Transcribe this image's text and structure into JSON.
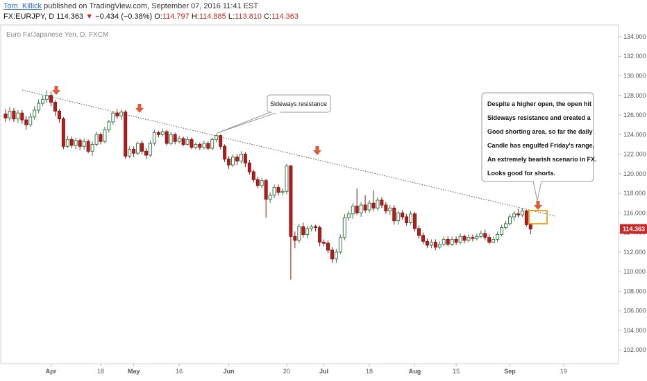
{
  "header": {
    "author": "Tom_Killick",
    "published_text": "published on TradingView.com, September 07, 2016 11:41 EST",
    "symbol": "FX:EURJPY, D",
    "last": "114.363",
    "down_arrow": "▼",
    "change": "−0.434 (−0.38%)",
    "o_label": "O:",
    "o_value": "114.797",
    "h_label": "H:",
    "h_value": "114.885",
    "l_label": "L:",
    "l_value": "113.810",
    "c_label": "C:",
    "c_value": "114.363"
  },
  "chart_data": {
    "type": "candlestick",
    "symbol_label": "Euro Fx/Japanese Yen, D, FXCM",
    "ylim": [
      100.6,
      135.2
    ],
    "y_ticks": [
      "102.000",
      "104.000",
      "106.000",
      "108.000",
      "110.000",
      "112.000",
      "114.000",
      "116.000",
      "118.000",
      "120.000",
      "122.000",
      "124.000",
      "126.000",
      "128.000",
      "130.000",
      "132.000",
      "134.000"
    ],
    "x_ticks": [
      {
        "label": "Apr",
        "bold": true,
        "i": 11
      },
      {
        "label": "18",
        "bold": false,
        "i": 23
      },
      {
        "label": "May",
        "bold": true,
        "i": 31
      },
      {
        "label": "16",
        "bold": false,
        "i": 42
      },
      {
        "label": "Jun",
        "bold": true,
        "i": 54
      },
      {
        "label": "20",
        "bold": false,
        "i": 68
      },
      {
        "label": "Jul",
        "bold": true,
        "i": 77
      },
      {
        "label": "18",
        "bold": false,
        "i": 88
      },
      {
        "label": "Aug",
        "bold": true,
        "i": 99
      },
      {
        "label": "15",
        "bold": false,
        "i": 109
      },
      {
        "label": "Sep",
        "bold": true,
        "i": 122
      },
      {
        "label": "19",
        "bold": false,
        "i": 135
      }
    ],
    "candles": [
      [
        126.1,
        125.7,
        126.6,
        125.3
      ],
      [
        125.7,
        126.4,
        126.8,
        125.4
      ],
      [
        126.4,
        125.6,
        126.7,
        125.3
      ],
      [
        125.6,
        126.2,
        126.5,
        125.2
      ],
      [
        126.2,
        125.5,
        126.5,
        125.1
      ],
      [
        125.5,
        125.0,
        125.9,
        124.5
      ],
      [
        125.0,
        125.8,
        126.2,
        124.8
      ],
      [
        125.8,
        126.5,
        126.9,
        125.5
      ],
      [
        126.5,
        127.2,
        127.6,
        126.2
      ],
      [
        127.2,
        127.6,
        128.0,
        126.9
      ],
      [
        127.6,
        128.0,
        128.5,
        127.2
      ],
      [
        128.0,
        127.3,
        128.4,
        126.9
      ],
      [
        127.3,
        126.4,
        127.5,
        125.9
      ],
      [
        126.4,
        125.6,
        126.6,
        125.2
      ],
      [
        125.6,
        122.8,
        125.8,
        122.5
      ],
      [
        122.8,
        123.5,
        123.9,
        122.6
      ],
      [
        123.5,
        122.9,
        123.8,
        122.6
      ],
      [
        122.9,
        123.4,
        123.7,
        122.5
      ],
      [
        123.4,
        122.8,
        123.6,
        122.4
      ],
      [
        122.8,
        123.3,
        123.6,
        122.5
      ],
      [
        123.3,
        122.3,
        123.5,
        122.1
      ],
      [
        122.3,
        123.0,
        123.3,
        121.8
      ],
      [
        123.0,
        124.0,
        124.3,
        122.8
      ],
      [
        124.0,
        123.3,
        124.2,
        123.0
      ],
      [
        123.3,
        124.5,
        124.8,
        123.1
      ],
      [
        124.5,
        125.3,
        125.5,
        124.2
      ],
      [
        125.3,
        126.2,
        126.4,
        125.0
      ],
      [
        126.2,
        125.9,
        126.6,
        125.6
      ],
      [
        125.9,
        126.3,
        126.6,
        125.5
      ],
      [
        126.3,
        121.8,
        126.5,
        121.5
      ],
      [
        121.8,
        122.5,
        122.8,
        121.6
      ],
      [
        122.5,
        122.1,
        122.8,
        121.7
      ],
      [
        122.1,
        123.1,
        123.3,
        121.9
      ],
      [
        123.1,
        122.3,
        123.4,
        122.0
      ],
      [
        122.3,
        121.9,
        122.6,
        121.5
      ],
      [
        121.9,
        123.1,
        123.4,
        121.7
      ],
      [
        123.1,
        124.2,
        124.5,
        122.9
      ],
      [
        124.2,
        124.0,
        124.4,
        123.7
      ],
      [
        124.0,
        124.3,
        124.6,
        123.8
      ],
      [
        124.3,
        123.1,
        124.5,
        122.9
      ],
      [
        123.1,
        124.0,
        124.3,
        122.9
      ],
      [
        124.0,
        123.3,
        124.2,
        123.0
      ],
      [
        123.3,
        123.6,
        123.9,
        123.1
      ],
      [
        123.6,
        123.0,
        123.8,
        122.8
      ],
      [
        123.0,
        123.5,
        123.8,
        122.9
      ],
      [
        123.5,
        122.7,
        123.7,
        122.5
      ],
      [
        122.7,
        123.0,
        123.2,
        122.5
      ],
      [
        123.0,
        122.7,
        123.2,
        122.4
      ],
      [
        122.7,
        123.1,
        123.4,
        122.5
      ],
      [
        123.1,
        122.6,
        123.3,
        122.4
      ],
      [
        122.6,
        123.5,
        123.7,
        122.4
      ],
      [
        123.5,
        123.9,
        124.1,
        123.2
      ],
      [
        123.9,
        122.8,
        124.0,
        122.5
      ],
      [
        122.8,
        121.5,
        123.0,
        121.2
      ],
      [
        121.5,
        120.9,
        121.8,
        120.5
      ],
      [
        120.9,
        121.7,
        122.0,
        120.7
      ],
      [
        121.7,
        121.3,
        122.0,
        120.9
      ],
      [
        121.3,
        122.0,
        122.3,
        121.0
      ],
      [
        122.0,
        121.1,
        122.2,
        120.7
      ],
      [
        121.1,
        120.2,
        121.4,
        119.9
      ],
      [
        120.2,
        119.4,
        120.4,
        119.1
      ],
      [
        119.4,
        118.8,
        119.7,
        118.5
      ],
      [
        118.8,
        119.3,
        119.6,
        118.5
      ],
      [
        119.3,
        117.4,
        119.5,
        115.5
      ],
      [
        117.4,
        117.8,
        118.1,
        117.0
      ],
      [
        117.8,
        118.6,
        118.9,
        117.5
      ],
      [
        118.6,
        118.1,
        118.9,
        117.8
      ],
      [
        118.1,
        118.2,
        118.5,
        117.8
      ],
      [
        118.2,
        120.8,
        121.0,
        117.9
      ],
      [
        120.8,
        113.6,
        120.9,
        109.2
      ],
      [
        113.6,
        113.2,
        114.1,
        112.4
      ],
      [
        113.2,
        114.6,
        114.9,
        112.9
      ],
      [
        114.6,
        113.8,
        115.0,
        113.5
      ],
      [
        113.8,
        114.4,
        114.7,
        113.4
      ],
      [
        114.4,
        114.6,
        114.8,
        114.1
      ],
      [
        114.6,
        114.5,
        114.8,
        114.1
      ],
      [
        114.5,
        113.0,
        114.7,
        112.6
      ],
      [
        113.0,
        112.9,
        113.3,
        112.6
      ],
      [
        112.9,
        112.2,
        113.2,
        111.9
      ],
      [
        112.2,
        111.3,
        112.5,
        110.9
      ],
      [
        111.3,
        112.0,
        112.3,
        110.9
      ],
      [
        112.0,
        113.5,
        113.8,
        111.8
      ],
      [
        113.5,
        115.5,
        115.9,
        113.2
      ],
      [
        115.5,
        115.9,
        116.2,
        115.2
      ],
      [
        115.9,
        116.7,
        117.0,
        115.4
      ],
      [
        116.7,
        116.0,
        118.5,
        115.8
      ],
      [
        116.0,
        116.8,
        117.1,
        115.6
      ],
      [
        116.8,
        116.3,
        117.8,
        116.0
      ],
      [
        116.3,
        117.0,
        117.3,
        116.0
      ],
      [
        117.0,
        116.5,
        118.3,
        116.2
      ],
      [
        116.5,
        117.3,
        117.6,
        116.2
      ],
      [
        117.3,
        116.8,
        117.6,
        116.5
      ],
      [
        116.8,
        116.2,
        117.1,
        115.9
      ],
      [
        116.2,
        116.5,
        116.8,
        115.8
      ],
      [
        116.5,
        115.2,
        116.8,
        114.8
      ],
      [
        115.2,
        116.0,
        116.2,
        114.8
      ],
      [
        116.0,
        115.6,
        116.3,
        115.3
      ],
      [
        115.6,
        115.0,
        115.9,
        114.7
      ],
      [
        115.0,
        115.9,
        116.2,
        114.8
      ],
      [
        115.9,
        114.4,
        116.1,
        114.1
      ],
      [
        114.4,
        113.7,
        114.7,
        113.4
      ],
      [
        113.7,
        113.1,
        114.0,
        112.8
      ],
      [
        113.1,
        112.7,
        113.4,
        112.4
      ],
      [
        112.7,
        113.0,
        113.3,
        112.4
      ],
      [
        113.0,
        112.5,
        113.3,
        112.2
      ],
      [
        112.5,
        112.8,
        113.1,
        112.3
      ],
      [
        112.8,
        113.3,
        113.6,
        112.6
      ],
      [
        113.3,
        112.8,
        113.6,
        112.6
      ],
      [
        112.8,
        113.3,
        113.6,
        112.6
      ],
      [
        113.3,
        113.0,
        113.6,
        112.7
      ],
      [
        113.0,
        113.6,
        113.9,
        112.8
      ],
      [
        113.6,
        113.2,
        113.8,
        112.9
      ],
      [
        113.2,
        113.5,
        113.8,
        113.0
      ],
      [
        113.5,
        113.4,
        113.8,
        113.1
      ],
      [
        113.4,
        113.6,
        113.9,
        113.2
      ],
      [
        113.6,
        113.9,
        114.2,
        113.4
      ],
      [
        113.9,
        113.5,
        114.3,
        113.2
      ],
      [
        113.5,
        113.0,
        113.8,
        112.8
      ],
      [
        113.0,
        113.3,
        113.6,
        112.9
      ],
      [
        113.3,
        113.8,
        114.1,
        113.0
      ],
      [
        113.8,
        114.5,
        114.8,
        113.6
      ],
      [
        114.5,
        114.9,
        115.2,
        114.3
      ],
      [
        114.9,
        115.6,
        115.9,
        114.7
      ],
      [
        115.6,
        115.9,
        116.2,
        115.2
      ],
      [
        115.9,
        115.8,
        116.4,
        115.5
      ],
      [
        115.8,
        116.2,
        116.5,
        115.6
      ],
      [
        116.2,
        114.8,
        116.3,
        114.6
      ],
      [
        114.8,
        114.363,
        114.885,
        113.81
      ]
    ],
    "current_price": "114.363"
  },
  "annotations": {
    "sideways_label": "Sideways resistance",
    "commentary": [
      "Despite a higher open, the open hit",
      "Sideways resistance and created a",
      "Good shorting area, so far the daily",
      "Candle has engulfed Friday's range,",
      "An extremely bearish scenario in FX.",
      "Looks good for shorts."
    ]
  },
  "colors": {
    "up_fill": "#ffffff",
    "up_border": "#3a7a4a",
    "down_fill": "#b71c1c",
    "down_border": "#8a1414",
    "arrow": "#e05a3a",
    "highlight": "#f5a623",
    "price_tag": "#c62828",
    "trendline": "#555555"
  }
}
